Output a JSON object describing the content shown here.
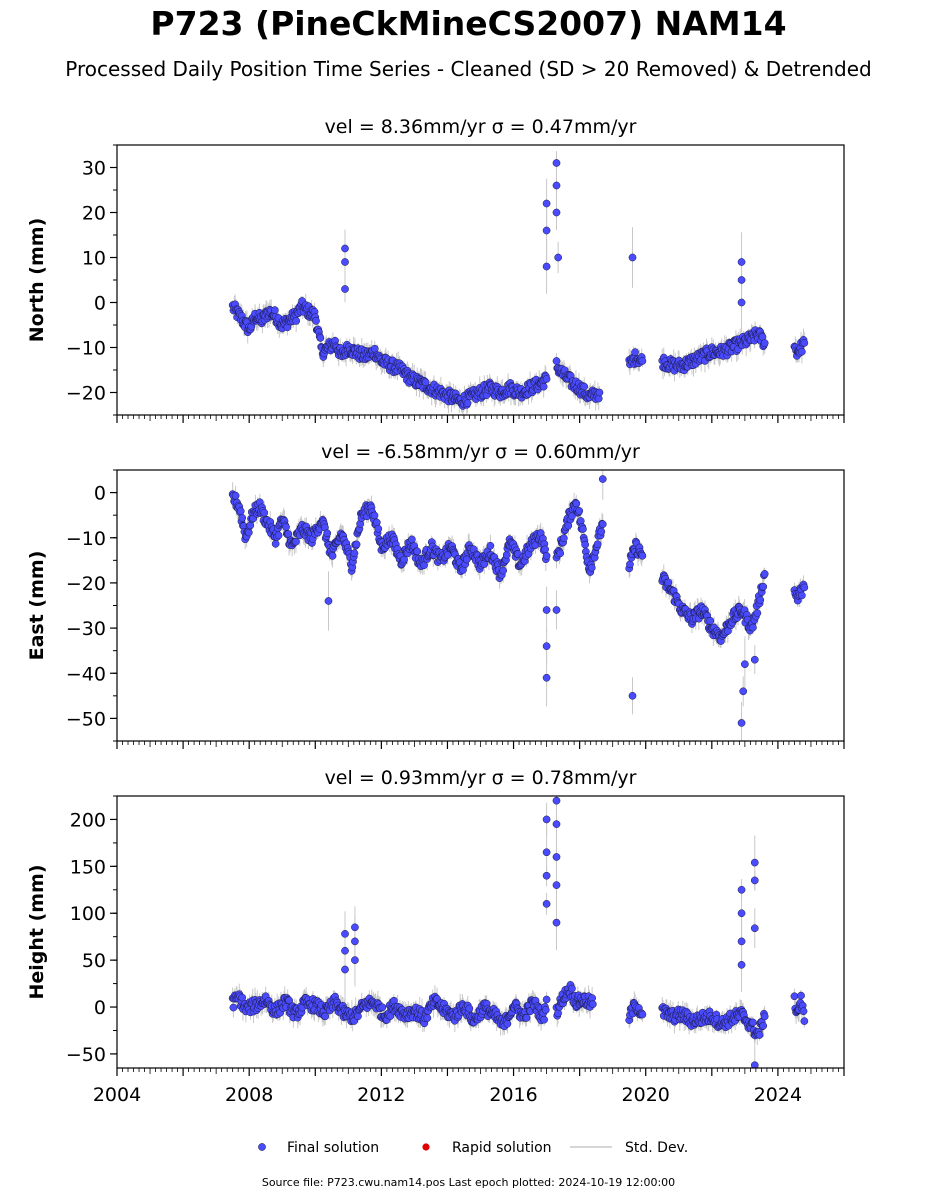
{
  "figure": {
    "title": "P723 (PineCkMineCS2007) NAM14",
    "subtitle": "Processed Daily Position Time Series - Cleaned (SD > 20 Removed) & Detrended",
    "source_note": "Source file: P723.cwu.nam14.pos  Last epoch plotted: 2024-10-19 12:00:00"
  },
  "colors": {
    "final": "#4a4aff",
    "rapid": "#e00000",
    "stddev": "#c8c8c8",
    "marker_edge": "#1a1a40"
  },
  "legend": {
    "final_label": "Final solution",
    "rapid_label": "Rapid solution",
    "stddev_label": "Std. Dev."
  },
  "chart_data": [
    {
      "type": "scatter",
      "title": "vel = 8.36mm/yr   σ = 0.47mm/yr",
      "ylabel": "North (mm)",
      "xlim": [
        2004,
        2026
      ],
      "ylim": [
        -25,
        35
      ],
      "yticks": [
        -20,
        -10,
        0,
        10,
        20,
        30
      ],
      "yticklabels": [
        "−20",
        "−10",
        "0",
        "10",
        "20",
        "30"
      ],
      "series": [
        {
          "name": "Final solution",
          "segments": [
            {
              "x": [
                2007.5,
                2007.6,
                2007.7,
                2007.8,
                2008.0,
                2008.2,
                2008.4,
                2008.6,
                2008.8,
                2009.0,
                2009.2,
                2009.4,
                2009.6,
                2009.8,
                2010.0,
                2010.2,
                2010.4,
                2010.6,
                2010.8,
                2011.0,
                2011.2,
                2011.5,
                2011.8,
                2012.0,
                2012.3,
                2012.6,
                2012.9,
                2013.2,
                2013.5,
                2013.8,
                2014.1,
                2014.4,
                2014.7,
                2015.0,
                2015.3,
                2015.6,
                2015.9,
                2016.2,
                2016.5,
                2016.8,
                2017.0
              ],
              "y": [
                -1,
                -2,
                -3,
                -4,
                -6,
                -3,
                -4,
                -2,
                -3,
                -5,
                -4,
                -3,
                -1,
                -2,
                -3,
                -11,
                -10,
                -9,
                -12,
                -10,
                -11,
                -12,
                -11,
                -13,
                -14,
                -15,
                -17,
                -18,
                -19,
                -20,
                -21,
                -22,
                -21,
                -20,
                -19,
                -20,
                -19,
                -20,
                -19,
                -18,
                -17
              ]
            },
            {
              "x": [
                2017.3,
                2017.5,
                2017.8,
                2018.0,
                2018.3,
                2018.6
              ],
              "y": [
                -14,
                -16,
                -18,
                -19,
                -21,
                -20
              ]
            },
            {
              "x": [
                2019.5,
                2019.7,
                2019.9
              ],
              "y": [
                -14,
                -12,
                -13
              ]
            },
            {
              "x": [
                2020.5,
                2020.8,
                2021.1,
                2021.4,
                2021.7,
                2022.0,
                2022.3,
                2022.6,
                2022.9,
                2023.2,
                2023.4,
                2023.6
              ],
              "y": [
                -13,
                -14,
                -14,
                -13,
                -12,
                -11,
                -11,
                -10,
                -9,
                -8,
                -7,
                -9
              ]
            },
            {
              "x": [
                2024.5,
                2024.6,
                2024.7,
                2024.8
              ],
              "y": [
                -10,
                -11,
                -10,
                -9
              ]
            }
          ]
        }
      ],
      "outliers": [
        {
          "x": 2010.9,
          "y": 12
        },
        {
          "x": 2010.9,
          "y": 9
        },
        {
          "x": 2010.9,
          "y": 3
        },
        {
          "x": 2017.0,
          "y": 16
        },
        {
          "x": 2017.0,
          "y": 8
        },
        {
          "x": 2017.0,
          "y": 22
        },
        {
          "x": 2017.3,
          "y": 31
        },
        {
          "x": 2017.3,
          "y": 26
        },
        {
          "x": 2017.3,
          "y": 20
        },
        {
          "x": 2017.35,
          "y": 10
        },
        {
          "x": 2019.6,
          "y": 10
        },
        {
          "x": 2022.9,
          "y": 9
        },
        {
          "x": 2022.9,
          "y": 5
        },
        {
          "x": 2022.9,
          "y": 0
        }
      ]
    },
    {
      "type": "scatter",
      "title": "vel = -6.58mm/yr   σ = 0.60mm/yr",
      "ylabel": "East (mm)",
      "xlim": [
        2004,
        2026
      ],
      "ylim": [
        -55,
        5
      ],
      "yticks": [
        -50,
        -40,
        -30,
        -20,
        -10,
        0
      ],
      "yticklabels": [
        "−50",
        "−40",
        "−30",
        "−20",
        "−10",
        "0"
      ],
      "series": [
        {
          "name": "Final solution",
          "segments": [
            {
              "x": [
                2007.5,
                2007.7,
                2007.9,
                2008.1,
                2008.3,
                2008.5,
                2008.8,
                2009.0,
                2009.3,
                2009.6,
                2009.9,
                2010.2,
                2010.5,
                2010.8,
                2011.1,
                2011.4,
                2011.7,
                2012.0,
                2012.3,
                2012.6,
                2012.9,
                2013.2,
                2013.5,
                2013.8,
                2014.1,
                2014.4,
                2014.7,
                2015.0,
                2015.3,
                2015.6,
                2015.9,
                2016.2,
                2016.5,
                2016.8,
                2017.0
              ],
              "y": [
                -1,
                -3,
                -10,
                -5,
                -3,
                -6,
                -10,
                -6,
                -12,
                -8,
                -10,
                -6,
                -14,
                -9,
                -16,
                -5,
                -3,
                -12,
                -10,
                -15,
                -11,
                -16,
                -12,
                -15,
                -12,
                -17,
                -12,
                -16,
                -13,
                -18,
                -11,
                -16,
                -12,
                -9,
                -14
              ]
            },
            {
              "x": [
                2017.3,
                2017.5,
                2017.7,
                2017.9,
                2018.1,
                2018.3,
                2018.5,
                2018.7
              ],
              "y": [
                -15,
                -10,
                -5,
                -2,
                -9,
                -17,
                -12,
                -7
              ]
            },
            {
              "x": [
                2019.5,
                2019.7,
                2019.9
              ],
              "y": [
                -16,
                -12,
                -14
              ]
            },
            {
              "x": [
                2020.5,
                2020.8,
                2021.1,
                2021.4,
                2021.7,
                2022.0,
                2022.3,
                2022.6,
                2022.9,
                2023.2,
                2023.4,
                2023.6
              ],
              "y": [
                -19,
                -22,
                -26,
                -28,
                -26,
                -30,
                -32,
                -28,
                -26,
                -30,
                -25,
                -18
              ]
            },
            {
              "x": [
                2024.5,
                2024.6,
                2024.7,
                2024.8
              ],
              "y": [
                -22,
                -23,
                -22,
                -21
              ]
            }
          ]
        }
      ],
      "outliers": [
        {
          "x": 2010.4,
          "y": -24
        },
        {
          "x": 2017.0,
          "y": -41
        },
        {
          "x": 2017.0,
          "y": -34
        },
        {
          "x": 2017.0,
          "y": -26
        },
        {
          "x": 2017.3,
          "y": -26
        },
        {
          "x": 2018.7,
          "y": 3
        },
        {
          "x": 2019.6,
          "y": -45
        },
        {
          "x": 2022.9,
          "y": -51
        },
        {
          "x": 2022.95,
          "y": -44
        },
        {
          "x": 2023.0,
          "y": -38
        },
        {
          "x": 2023.3,
          "y": -37
        }
      ]
    },
    {
      "type": "scatter",
      "title": "vel = 0.93mm/yr   σ = 0.78mm/yr",
      "ylabel": "Height (mm)",
      "xlabel": "",
      "xlim": [
        2004,
        2026
      ],
      "ylim": [
        -65,
        225
      ],
      "yticks": [
        -50,
        0,
        50,
        100,
        150,
        200
      ],
      "yticklabels": [
        "−50",
        "0",
        "50",
        "100",
        "150",
        "200"
      ],
      "xticks": [
        2004,
        2008,
        2012,
        2016,
        2020,
        2024
      ],
      "xticklabels": [
        "2004",
        "2008",
        "2012",
        "2016",
        "2020",
        "2024"
      ],
      "series": [
        {
          "name": "Final solution",
          "segments": [
            {
              "x": [
                2007.5,
                2007.7,
                2007.9,
                2008.2,
                2008.5,
                2008.8,
                2009.1,
                2009.4,
                2009.7,
                2010.0,
                2010.3,
                2010.6,
                2010.9,
                2011.2,
                2011.5,
                2011.8,
                2012.1,
                2012.4,
                2012.7,
                2013.0,
                2013.3,
                2013.6,
                2013.9,
                2014.2,
                2014.5,
                2014.8,
                2015.1,
                2015.4,
                2015.7,
                2016.0,
                2016.3,
                2016.6,
                2016.9,
                2017.0
              ],
              "y": [
                5,
                10,
                -2,
                2,
                8,
                -5,
                6,
                -8,
                4,
                2,
                -6,
                5,
                -8,
                -10,
                3,
                5,
                -10,
                2,
                -8,
                -4,
                -12,
                6,
                -3,
                -10,
                2,
                -15,
                0,
                -8,
                -20,
                2,
                -10,
                5,
                -12,
                8
              ]
            },
            {
              "x": [
                2017.3,
                2017.5,
                2017.7,
                2017.9,
                2018.1,
                2018.4
              ],
              "y": [
                -5,
                10,
                20,
                5,
                8,
                3
              ]
            },
            {
              "x": [
                2019.5,
                2019.7,
                2019.9
              ],
              "y": [
                -10,
                3,
                -8
              ]
            },
            {
              "x": [
                2020.5,
                2020.8,
                2021.1,
                2021.4,
                2021.7,
                2022.0,
                2022.3,
                2022.6,
                2022.9,
                2023.2,
                2023.4,
                2023.6
              ],
              "y": [
                -5,
                -10,
                -8,
                -15,
                -12,
                -10,
                -18,
                -12,
                -8,
                -20,
                -30,
                -10
              ]
            },
            {
              "x": [
                2024.5,
                2024.6,
                2024.7,
                2024.8
              ],
              "y": [
                5,
                -5,
                8,
                -15
              ]
            }
          ]
        }
      ],
      "outliers": [
        {
          "x": 2010.9,
          "y": 78
        },
        {
          "x": 2010.9,
          "y": 60
        },
        {
          "x": 2010.9,
          "y": 40
        },
        {
          "x": 2011.2,
          "y": 85
        },
        {
          "x": 2011.2,
          "y": 70
        },
        {
          "x": 2011.2,
          "y": 50
        },
        {
          "x": 2017.0,
          "y": 200
        },
        {
          "x": 2017.0,
          "y": 165
        },
        {
          "x": 2017.0,
          "y": 140
        },
        {
          "x": 2017.0,
          "y": 110
        },
        {
          "x": 2017.3,
          "y": 220
        },
        {
          "x": 2017.3,
          "y": 195
        },
        {
          "x": 2017.3,
          "y": 160
        },
        {
          "x": 2017.3,
          "y": 130
        },
        {
          "x": 2017.3,
          "y": 90
        },
        {
          "x": 2022.9,
          "y": 125
        },
        {
          "x": 2022.9,
          "y": 100
        },
        {
          "x": 2022.9,
          "y": 70
        },
        {
          "x": 2022.9,
          "y": 45
        },
        {
          "x": 2023.3,
          "y": 154
        },
        {
          "x": 2023.3,
          "y": 135
        },
        {
          "x": 2023.3,
          "y": 84
        },
        {
          "x": 2023.3,
          "y": -62
        }
      ]
    }
  ]
}
